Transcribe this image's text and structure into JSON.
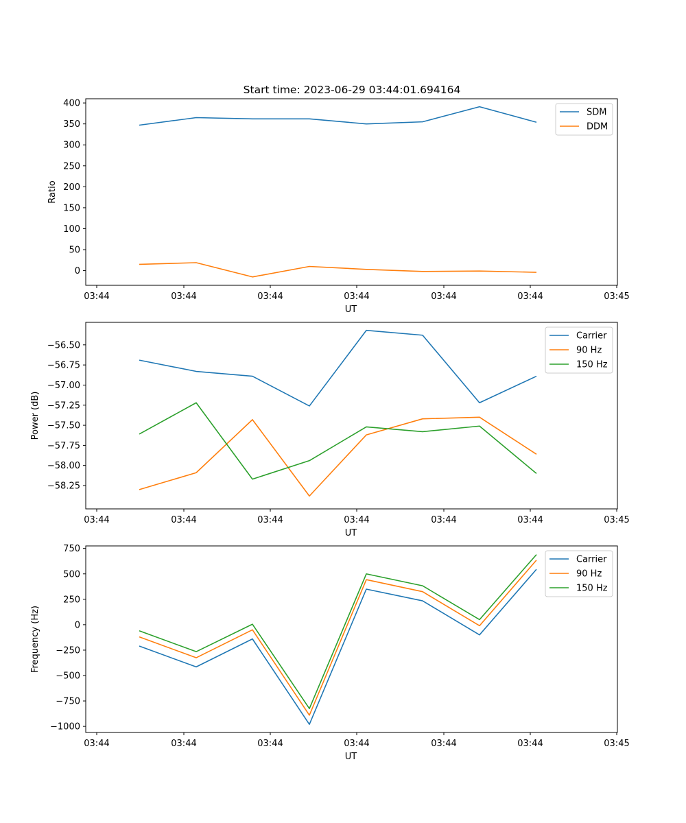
{
  "title": "Start time: 2023-06-29 03:44:01.694164",
  "colors": {
    "blue": "#1f77b4",
    "orange": "#ff7f0e",
    "green": "#2ca02c"
  },
  "chart_data": [
    {
      "type": "line",
      "title": "Start time: 2023-06-29 03:44:01.694164",
      "xlabel": "UT",
      "ylabel": "Ratio",
      "xticks": [
        "03:44",
        "03:44",
        "03:44",
        "03:44",
        "03:44",
        "03:44",
        "03:45"
      ],
      "yticks": [
        "0",
        "50",
        "100",
        "150",
        "200",
        "250",
        "300",
        "350",
        "400"
      ],
      "ylim": [
        -35,
        410
      ],
      "grid": false,
      "legend": "top-right",
      "series": [
        {
          "name": "SDM",
          "color": "#1f77b4",
          "values": [
            347,
            365,
            362,
            362,
            350,
            355,
            391,
            354
          ]
        },
        {
          "name": "DDM",
          "color": "#ff7f0e",
          "values": [
            15,
            19,
            -15,
            10,
            3,
            -2,
            -1,
            -4
          ]
        }
      ]
    },
    {
      "type": "line",
      "xlabel": "UT",
      "ylabel": "Power (dB)",
      "xticks": [
        "03:44",
        "03:44",
        "03:44",
        "03:44",
        "03:44",
        "03:44",
        "03:45"
      ],
      "yticks": [
        "−58.25",
        "−58.00",
        "−57.75",
        "−57.50",
        "−57.25",
        "−57.00",
        "−56.75",
        "−56.50"
      ],
      "ylim": [
        -58.54,
        -56.22
      ],
      "grid": false,
      "legend": "top-right",
      "series": [
        {
          "name": "Carrier",
          "color": "#1f77b4",
          "values": [
            -56.69,
            -56.83,
            -56.89,
            -57.26,
            -56.32,
            -56.38,
            -57.22,
            -56.89
          ]
        },
        {
          "name": "90 Hz",
          "color": "#ff7f0e",
          "values": [
            -58.3,
            -58.09,
            -57.43,
            -58.38,
            -57.62,
            -57.42,
            -57.4,
            -57.86
          ]
        },
        {
          "name": "150 Hz",
          "color": "#2ca02c",
          "values": [
            -57.61,
            -57.22,
            -58.17,
            -57.94,
            -57.52,
            -57.58,
            -57.51,
            -58.1
          ]
        }
      ]
    },
    {
      "type": "line",
      "xlabel": "UT",
      "ylabel": "Frequency (Hz)",
      "xticks": [
        "03:44",
        "03:44",
        "03:44",
        "03:44",
        "03:44",
        "03:44",
        "03:45"
      ],
      "yticks": [
        "−1000",
        "−750",
        "−500",
        "−250",
        "0",
        "250",
        "500",
        "750"
      ],
      "ylim": [
        -1060,
        775
      ],
      "grid": false,
      "legend": "top-right",
      "series": [
        {
          "name": "Carrier",
          "color": "#1f77b4",
          "values": [
            -210,
            -415,
            -140,
            -980,
            350,
            235,
            -100,
            545
          ]
        },
        {
          "name": "90 Hz",
          "color": "#ff7f0e",
          "values": [
            -120,
            -325,
            -50,
            -890,
            443,
            325,
            -10,
            635
          ]
        },
        {
          "name": "150 Hz",
          "color": "#2ca02c",
          "values": [
            -60,
            -265,
            5,
            -825,
            500,
            383,
            50,
            690
          ]
        }
      ]
    }
  ]
}
